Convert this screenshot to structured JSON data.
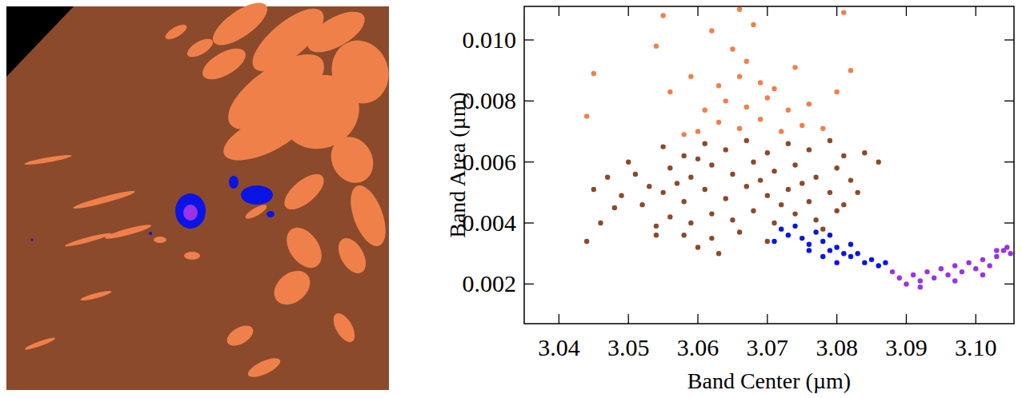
{
  "chart_data": {
    "type": "scatter",
    "x_label": "Band Center (µm)",
    "y_label": "Band Area (µm)",
    "xlim": [
      3.035,
      3.1055
    ],
    "ylim": [
      0.0007,
      0.0111
    ],
    "xticks": [
      3.04,
      3.05,
      3.06,
      3.07,
      3.08,
      3.09,
      {
        "value": 3.1,
        "label": "3.10"
      }
    ],
    "yticks": [
      0.002,
      0.004,
      0.006,
      0.008,
      {
        "value": 0.01,
        "label": "0.010"
      }
    ],
    "grid": false,
    "marker": "circle",
    "series": [
      {
        "color": "#8b4a2b",
        "x": [
          3.055,
          3.058,
          3.061,
          3.064,
          3.067,
          3.07,
          3.073,
          3.076,
          3.079,
          3.081,
          3.056,
          3.059,
          3.062,
          3.065,
          3.068,
          3.071,
          3.074,
          3.077,
          3.08,
          3.082,
          3.055,
          3.058,
          3.061,
          3.064,
          3.067,
          3.07,
          3.073,
          3.076,
          3.079,
          3.081,
          3.056,
          3.059,
          3.062,
          3.065,
          3.068,
          3.071,
          3.074,
          3.077,
          3.08,
          3.058,
          3.062,
          3.066,
          3.07,
          3.063,
          3.06,
          3.045,
          3.047,
          3.049,
          3.051,
          3.053,
          3.048,
          3.052,
          3.05,
          3.046,
          3.044,
          3.054,
          3.054,
          3.084,
          3.086,
          3.083,
          3.057,
          3.069,
          3.075,
          3.06,
          3.072,
          3.078
        ],
        "values": [
          0.0065,
          0.0062,
          0.0066,
          0.0064,
          0.0067,
          0.0063,
          0.0066,
          0.0064,
          0.0067,
          0.0062,
          0.0058,
          0.0055,
          0.0059,
          0.0056,
          0.006,
          0.0057,
          0.0059,
          0.0055,
          0.0058,
          0.0054,
          0.005,
          0.0047,
          0.0051,
          0.0048,
          0.0052,
          0.0049,
          0.0051,
          0.0047,
          0.005,
          0.0046,
          0.0042,
          0.004,
          0.0043,
          0.0041,
          0.0044,
          0.004,
          0.0043,
          0.0041,
          0.0044,
          0.0036,
          0.0035,
          0.0037,
          0.0034,
          0.003,
          0.0032,
          0.0051,
          0.0055,
          0.0049,
          0.0056,
          0.0052,
          0.0045,
          0.0046,
          0.006,
          0.004,
          0.0034,
          0.0039,
          0.0036,
          0.0063,
          0.006,
          0.005,
          0.0053,
          0.0054,
          0.0053,
          0.0061,
          0.0046,
          0.0038
        ]
      },
      {
        "color": "#f0804a",
        "x": [
          3.06,
          3.063,
          3.066,
          3.069,
          3.072,
          3.075,
          3.058,
          3.078,
          3.061,
          3.064,
          3.067,
          3.07,
          3.073,
          3.063,
          3.066,
          3.069,
          3.071,
          3.067,
          3.065,
          3.068,
          3.066,
          3.055,
          3.045,
          3.044,
          3.054,
          3.062,
          3.081,
          3.082,
          3.08,
          3.056,
          3.059,
          3.074,
          3.076
        ],
        "values": [
          0.007,
          0.0073,
          0.0071,
          0.0074,
          0.007,
          0.0072,
          0.0069,
          0.0071,
          0.0077,
          0.008,
          0.0078,
          0.0081,
          0.0077,
          0.0085,
          0.0088,
          0.0086,
          0.0084,
          0.0093,
          0.0097,
          0.0105,
          0.011,
          0.0108,
          0.0089,
          0.0075,
          0.0098,
          0.0103,
          0.0109,
          0.009,
          0.0083,
          0.0083,
          0.0088,
          0.0091,
          0.0079
        ]
      },
      {
        "color": "#0a14e6",
        "x": [
          3.072,
          3.074,
          3.073,
          3.075,
          3.077,
          3.076,
          3.078,
          3.079,
          3.08,
          3.081,
          3.082,
          3.083,
          3.084,
          3.085,
          3.086,
          3.087,
          3.071,
          3.078,
          3.08,
          3.076,
          3.079,
          3.082
        ],
        "values": [
          0.0038,
          0.0039,
          0.0036,
          0.0035,
          0.0037,
          0.0033,
          0.0034,
          0.0031,
          0.0032,
          0.003,
          0.0029,
          0.003,
          0.0027,
          0.0028,
          0.0026,
          0.0027,
          0.0034,
          0.0029,
          0.0027,
          0.0031,
          0.0036,
          0.0033
        ]
      },
      {
        "color": "#9a32e6",
        "x": [
          3.088,
          3.089,
          3.09,
          3.091,
          3.092,
          3.093,
          3.094,
          3.095,
          3.096,
          3.097,
          3.098,
          3.099,
          3.1,
          3.101,
          3.102,
          3.103,
          3.104,
          3.105,
          3.1045,
          3.103,
          3.092,
          3.097,
          3.101
        ],
        "values": [
          0.0024,
          0.0022,
          0.002,
          0.0023,
          0.0021,
          0.0024,
          0.0022,
          0.0025,
          0.0023,
          0.0026,
          0.0024,
          0.0027,
          0.0025,
          0.0028,
          0.0026,
          0.0029,
          0.0031,
          0.003,
          0.0032,
          0.0031,
          0.0019,
          0.0021,
          0.0023
        ]
      }
    ]
  }
}
